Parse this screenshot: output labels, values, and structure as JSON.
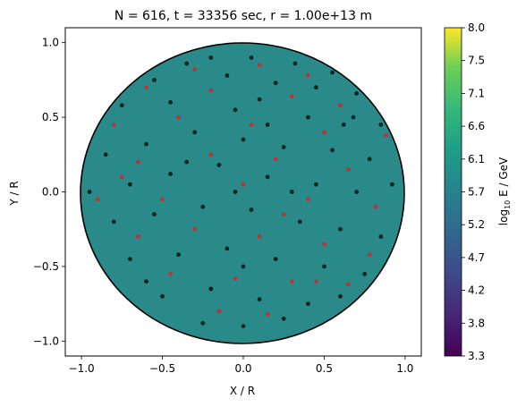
{
  "chart_data": {
    "type": "scatter",
    "title": "N = 616, t = 33356 sec, r = 1.00e+13 m",
    "xlabel": "X / R",
    "ylabel": "Y / R",
    "xlim": [
      -1.1,
      1.1
    ],
    "ylim": [
      -1.1,
      1.1
    ],
    "xticks": [
      "−1.0",
      "−0.5",
      "0.0",
      "0.5",
      "1.0"
    ],
    "yticks": [
      "−1.0",
      "−0.5",
      "0.0",
      "0.5",
      "1.0"
    ],
    "boundary": {
      "shape": "circle",
      "radius": 1.0,
      "color": "#000000"
    },
    "background_field": {
      "log10_E_GeV": 5.6,
      "color": "#2a8a8a"
    },
    "series": [
      {
        "color": "#000000",
        "points": [
          [
            -0.35,
            0.86
          ],
          [
            -0.2,
            0.9
          ],
          [
            0.05,
            0.9
          ],
          [
            0.32,
            0.86
          ],
          [
            0.55,
            0.8
          ],
          [
            -0.55,
            0.75
          ],
          [
            -0.1,
            0.78
          ],
          [
            0.2,
            0.73
          ],
          [
            0.45,
            0.7
          ],
          [
            0.7,
            0.66
          ],
          [
            -0.75,
            0.58
          ],
          [
            -0.45,
            0.6
          ],
          [
            -0.05,
            0.55
          ],
          [
            0.1,
            0.62
          ],
          [
            0.4,
            0.5
          ],
          [
            0.68,
            0.5
          ],
          [
            0.85,
            0.45
          ],
          [
            -0.85,
            0.25
          ],
          [
            -0.6,
            0.32
          ],
          [
            -0.3,
            0.4
          ],
          [
            0.0,
            0.35
          ],
          [
            0.25,
            0.3
          ],
          [
            0.55,
            0.28
          ],
          [
            0.78,
            0.22
          ],
          [
            -0.95,
            0.0
          ],
          [
            -0.7,
            0.05
          ],
          [
            -0.45,
            0.12
          ],
          [
            -0.15,
            0.18
          ],
          [
            0.15,
            0.1
          ],
          [
            0.45,
            0.05
          ],
          [
            0.7,
            0.0
          ],
          [
            0.92,
            0.05
          ],
          [
            -0.8,
            -0.2
          ],
          [
            -0.55,
            -0.15
          ],
          [
            -0.25,
            -0.1
          ],
          [
            0.05,
            -0.12
          ],
          [
            0.35,
            -0.2
          ],
          [
            0.6,
            -0.25
          ],
          [
            0.85,
            -0.3
          ],
          [
            -0.7,
            -0.45
          ],
          [
            -0.4,
            -0.42
          ],
          [
            -0.1,
            -0.38
          ],
          [
            0.2,
            -0.45
          ],
          [
            0.5,
            -0.5
          ],
          [
            0.75,
            -0.55
          ],
          [
            -0.5,
            -0.7
          ],
          [
            -0.2,
            -0.65
          ],
          [
            0.1,
            -0.72
          ],
          [
            0.4,
            -0.75
          ],
          [
            0.6,
            -0.7
          ],
          [
            -0.25,
            -0.88
          ],
          [
            0.0,
            -0.9
          ],
          [
            0.25,
            -0.85
          ],
          [
            -0.6,
            -0.6
          ],
          [
            0.3,
            0.0
          ],
          [
            -0.05,
            0.0
          ],
          [
            0.0,
            -0.5
          ],
          [
            0.62,
            0.45
          ],
          [
            -0.35,
            0.2
          ],
          [
            0.15,
            0.45
          ]
        ]
      },
      {
        "color": "#e41a1c",
        "points": [
          [
            -0.3,
            0.82
          ],
          [
            0.1,
            0.85
          ],
          [
            0.4,
            0.78
          ],
          [
            -0.6,
            0.7
          ],
          [
            -0.2,
            0.68
          ],
          [
            0.3,
            0.64
          ],
          [
            0.6,
            0.58
          ],
          [
            -0.8,
            0.45
          ],
          [
            -0.4,
            0.5
          ],
          [
            0.05,
            0.45
          ],
          [
            0.5,
            0.4
          ],
          [
            0.88,
            0.38
          ],
          [
            -0.65,
            0.2
          ],
          [
            -0.2,
            0.25
          ],
          [
            0.2,
            0.22
          ],
          [
            0.65,
            0.15
          ],
          [
            -0.9,
            -0.05
          ],
          [
            -0.5,
            -0.05
          ],
          [
            0.0,
            0.05
          ],
          [
            0.4,
            -0.05
          ],
          [
            0.82,
            -0.1
          ],
          [
            -0.65,
            -0.3
          ],
          [
            -0.3,
            -0.25
          ],
          [
            0.1,
            -0.3
          ],
          [
            0.5,
            -0.35
          ],
          [
            0.78,
            -0.42
          ],
          [
            -0.45,
            -0.55
          ],
          [
            -0.05,
            -0.58
          ],
          [
            0.3,
            -0.6
          ],
          [
            0.65,
            -0.62
          ],
          [
            -0.15,
            -0.8
          ],
          [
            0.15,
            -0.82
          ],
          [
            0.45,
            -0.6
          ],
          [
            -0.75,
            0.1
          ],
          [
            0.25,
            -0.15
          ]
        ]
      }
    ],
    "colorbar": {
      "label": "log10 E / GeV",
      "label_base": "log",
      "label_sub": "10",
      "label_rest": " E / GeV",
      "min": 3.3,
      "max": 8.0,
      "ticks": [
        "8.0",
        "7.5",
        "7.1",
        "6.6",
        "6.1",
        "5.7",
        "5.2",
        "4.7",
        "4.2",
        "3.8",
        "3.3"
      ],
      "colormap": "viridis"
    }
  }
}
